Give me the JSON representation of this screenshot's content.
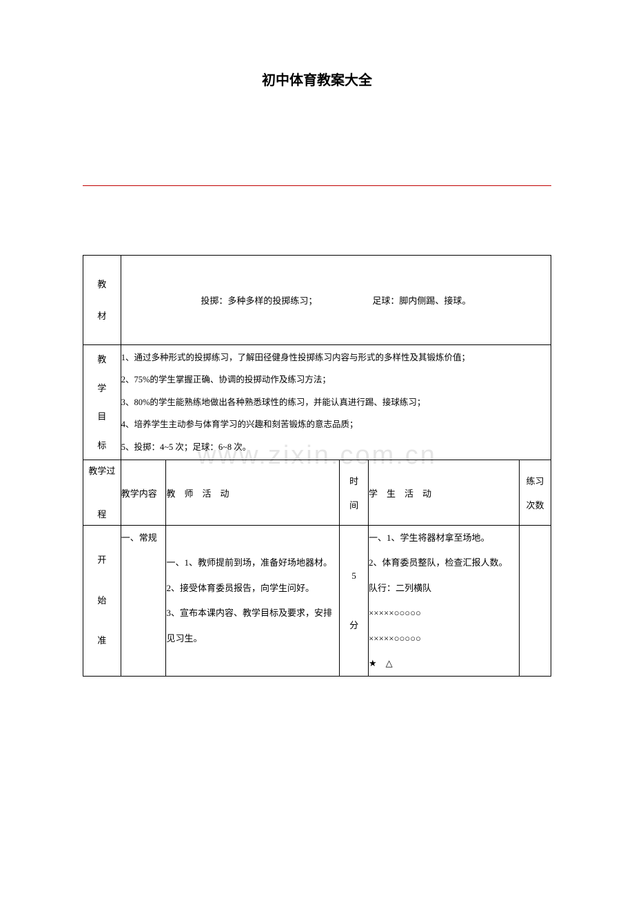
{
  "title": "初中体育教案大全",
  "watermark": "www.zixin.com.cn",
  "labels": {
    "materials": "教材",
    "goals": "教学目标",
    "process": "教学过程",
    "content_hdr": "教学内容",
    "teacher_hdr": "教　师　活　动",
    "time_hdr": "时间",
    "student_hdr": "学　生　活　动",
    "reps_hdr": "练习次数",
    "phase": "开始准"
  },
  "materials": {
    "left": "投掷：多种多样的投掷练习；",
    "right": "足球：脚内侧踢、接球。"
  },
  "goals": [
    "1、通过多种形式的投掷练习，了解田径健身性投掷练习内容与形式的多样性及其锻炼价值；",
    "2、75%的学生掌握正确、协调的投掷动作及练习方法；",
    "3、80%的学生能熟练地做出各种熟悉球性的练习，并能认真进行踢、接球练习；",
    "4、培养学生主动参与体育学习的兴趣和刻苦锻炼的意志品质；",
    "5、投掷：4~5 次；足球：6~8 次。"
  ],
  "row": {
    "content": "一、常规",
    "teacher": "一、1、教师提前到场，准备好场地器材。\n2、接受体育委员报告，向学生问好。\n3、宣布本课内容、教学目标及要求，安排见习生。",
    "time": "5分",
    "student": "一、1、学生将器材拿至场地。\n2、体育委员整队，检查汇报人数。\n队行：二列横队\n×××××○○○○○\n×××××○○○○○\n★　△",
    "reps": ""
  }
}
